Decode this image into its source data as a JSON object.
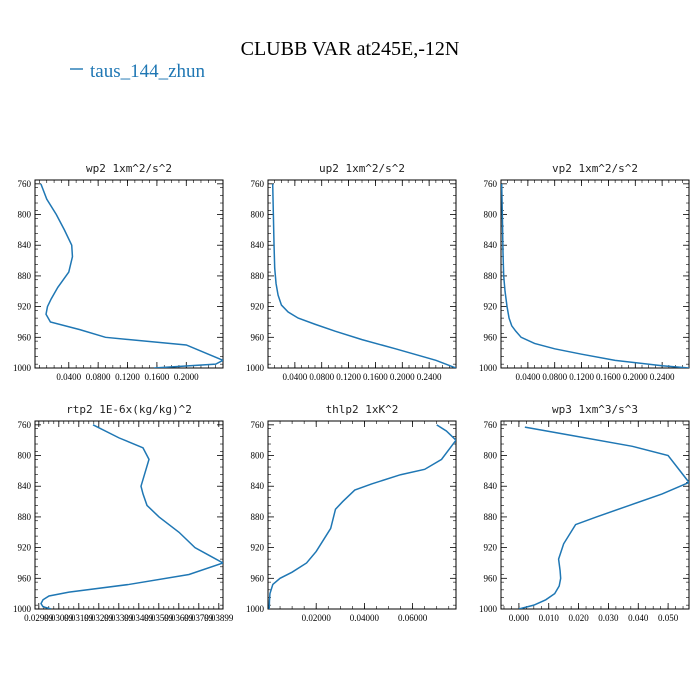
{
  "figure": {
    "title": "CLUBB VAR at245E,-12N",
    "legend_label": "taus_144_zhun",
    "line_color": "#1f77b4"
  },
  "chart_data": [
    {
      "type": "line",
      "title": "wp2   1xm^2/s^2",
      "xlim": [
        -0.006,
        0.25
      ],
      "ylim": [
        1000,
        755
      ],
      "y_ticks": [
        760,
        800,
        840,
        880,
        920,
        960,
        1000
      ],
      "x_ticks": [
        0.04,
        0.08,
        0.12,
        0.16,
        0.2
      ],
      "x_tick_labels": [
        "0.0400",
        "0.0800",
        "0.1200",
        "0.1600",
        "0.2000"
      ],
      "series": [
        {
          "x": [
            0.156,
            0.24,
            0.25,
            0.23,
            0.2,
            0.09,
            0.055,
            0.015,
            0.009,
            0.011,
            0.016,
            0.025,
            0.04,
            0.045,
            0.044,
            0.034,
            0.023,
            0.01,
            0.002
          ],
          "y": [
            1000,
            995,
            990,
            982,
            970,
            960,
            950,
            940,
            930,
            920,
            910,
            895,
            875,
            855,
            840,
            820,
            800,
            780,
            760
          ]
        }
      ]
    },
    {
      "type": "line",
      "title": "up2   1xm^2/s^2",
      "xlim": [
        0.0,
        0.28
      ],
      "ylim": [
        1000,
        755
      ],
      "y_ticks": [
        760,
        800,
        840,
        880,
        920,
        960,
        1000
      ],
      "x_ticks": [
        0.04,
        0.08,
        0.12,
        0.16,
        0.2,
        0.24
      ],
      "x_tick_labels": [
        "0.0400",
        "0.0800",
        "0.1200",
        "0.1600",
        "0.2000",
        "0.2400"
      ],
      "series": [
        {
          "x": [
            0.28,
            0.25,
            0.19,
            0.14,
            0.1,
            0.07,
            0.045,
            0.03,
            0.02,
            0.015,
            0.012,
            0.01,
            0.009,
            0.008,
            0.007
          ],
          "y": [
            1000,
            990,
            975,
            963,
            952,
            943,
            935,
            927,
            918,
            905,
            890,
            870,
            840,
            800,
            760
          ]
        }
      ]
    },
    {
      "type": "line",
      "title": "vp2   1xm^2/s^2",
      "xlim": [
        0.0,
        0.28
      ],
      "ylim": [
        1000,
        755
      ],
      "y_ticks": [
        760,
        800,
        840,
        880,
        920,
        960,
        1000
      ],
      "x_ticks": [
        0.04,
        0.08,
        0.12,
        0.16,
        0.2,
        0.24
      ],
      "x_tick_labels": [
        "0.0400",
        "0.0800",
        "0.1200",
        "0.1600",
        "0.2000",
        "0.2400"
      ],
      "series": [
        {
          "x": [
            0.28,
            0.24,
            0.17,
            0.12,
            0.08,
            0.05,
            0.03,
            0.022,
            0.016,
            0.012,
            0.009,
            0.006,
            0.004,
            0.003,
            0.002,
            0.001
          ],
          "y": [
            1000,
            997,
            990,
            982,
            975,
            968,
            960,
            952,
            945,
            935,
            920,
            900,
            880,
            850,
            800,
            760
          ]
        }
      ]
    },
    {
      "type": "line",
      "title": "rtp2   1E-6x(kg/kg)^2",
      "xlim": [
        0.0298,
        0.0392
      ],
      "ylim": [
        1000,
        755
      ],
      "y_ticks": [
        760,
        800,
        840,
        880,
        920,
        960,
        1000
      ],
      "x_ticks": [
        0.02999,
        0.03099,
        0.03199,
        0.03299,
        0.03399,
        0.03499,
        0.03599,
        0.03699,
        0.03799,
        0.03899
      ],
      "x_tick_labels": [
        "0.02999",
        "0.03099",
        "0.03199",
        "0.03299",
        "0.03399",
        "0.03499",
        "0.03599",
        "0.03699",
        "0.03799",
        "0.03899"
      ],
      "series": [
        {
          "x": [
            0.0306,
            0.0302,
            0.0301,
            0.0302,
            0.0305,
            0.0315,
            0.0345,
            0.0375,
            0.0392,
            0.0385,
            0.0378,
            0.037,
            0.036,
            0.0354,
            0.0352,
            0.0351,
            0.0355,
            0.0352,
            0.034,
            0.0327
          ],
          "y": [
            1000,
            997,
            993,
            988,
            983,
            978,
            968,
            955,
            940,
            930,
            920,
            900,
            880,
            865,
            850,
            840,
            805,
            790,
            777,
            760
          ]
        }
      ]
    },
    {
      "type": "line",
      "title": "thlp2   1xK^2",
      "xlim": [
        0.0,
        0.078
      ],
      "ylim": [
        1000,
        755
      ],
      "y_ticks": [
        760,
        800,
        840,
        880,
        920,
        960,
        1000
      ],
      "x_ticks": [
        0.02,
        0.04,
        0.06
      ],
      "x_tick_labels": [
        "0.02000",
        "0.04000",
        "0.06000"
      ],
      "series": [
        {
          "x": [
            0.0005,
            0.0006,
            0.0008,
            0.002,
            0.005,
            0.01,
            0.016,
            0.02,
            0.023,
            0.026,
            0.028,
            0.031,
            0.036,
            0.043,
            0.055,
            0.065,
            0.072,
            0.078,
            0.074,
            0.07
          ],
          "y": [
            1000,
            990,
            980,
            968,
            960,
            952,
            940,
            925,
            910,
            895,
            870,
            860,
            845,
            837,
            825,
            818,
            805,
            780,
            768,
            760
          ]
        }
      ]
    },
    {
      "type": "line",
      "title": "wp3   1xm^3/s^3",
      "xlim": [
        -0.006,
        0.057
      ],
      "ylim": [
        1000,
        755
      ],
      "y_ticks": [
        760,
        800,
        840,
        880,
        920,
        960,
        1000
      ],
      "x_ticks": [
        0.0,
        0.01,
        0.02,
        0.03,
        0.04,
        0.05
      ],
      "x_tick_labels": [
        "0.000",
        "0.010",
        "0.020",
        "0.030",
        "0.040",
        "0.050"
      ],
      "series": [
        {
          "x": [
            0.0,
            0.005,
            0.009,
            0.012,
            0.0135,
            0.014,
            0.0138,
            0.0133,
            0.015,
            0.019,
            0.026,
            0.037,
            0.048,
            0.057,
            0.054,
            0.05,
            0.038,
            0.018,
            0.002
          ],
          "y": [
            1000,
            995,
            988,
            980,
            970,
            960,
            950,
            935,
            915,
            890,
            880,
            865,
            850,
            835,
            820,
            800,
            788,
            774,
            763
          ]
        }
      ]
    }
  ]
}
